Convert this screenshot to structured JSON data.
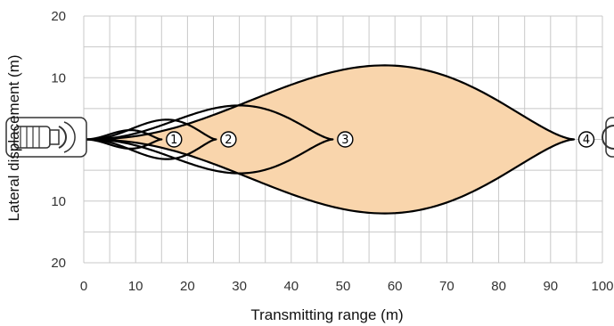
{
  "chart_data": {
    "type": "area",
    "xlabel": "Transmitting range (m)",
    "ylabel": "Lateral displacement (m)",
    "xlim": [
      0,
      100
    ],
    "ylim": [
      -20,
      20
    ],
    "x_ticks": [
      "0",
      "10",
      "20",
      "30",
      "40",
      "50",
      "60",
      "70",
      "80",
      "90",
      "100"
    ],
    "y_ticks": [
      {
        "value": 20,
        "label": "20"
      },
      {
        "value": 10,
        "label": "10"
      },
      {
        "value": -10,
        "label": "10"
      },
      {
        "value": -20,
        "label": "20"
      }
    ],
    "grid": true,
    "x_minor_step": 5,
    "y_minor_step": 5,
    "series": [
      {
        "label": "4",
        "x_start": 0,
        "x_end": 94.5,
        "max_half_width": 12,
        "x_at_max_width": 58,
        "filled": true,
        "fill_color": "#f9d5ac"
      },
      {
        "label": "3",
        "x_start": 0,
        "x_end": 48,
        "max_half_width": 5.5,
        "x_at_max_width": 30
      },
      {
        "label": "2",
        "x_start": 0,
        "x_end": 25.5,
        "max_half_width": 3.2,
        "x_at_max_width": 16
      },
      {
        "label": "1",
        "x_start": 0,
        "x_end": 15,
        "max_half_width": 1.5,
        "x_at_max_width": 9
      }
    ],
    "transmitter_icon": "sensor-transmitter-icon",
    "receiver_icon": "sensor-receiver-icon"
  },
  "colors": {
    "fill": "#f9d5ac",
    "grid": "#c8c8c8",
    "curve": "#000000"
  }
}
